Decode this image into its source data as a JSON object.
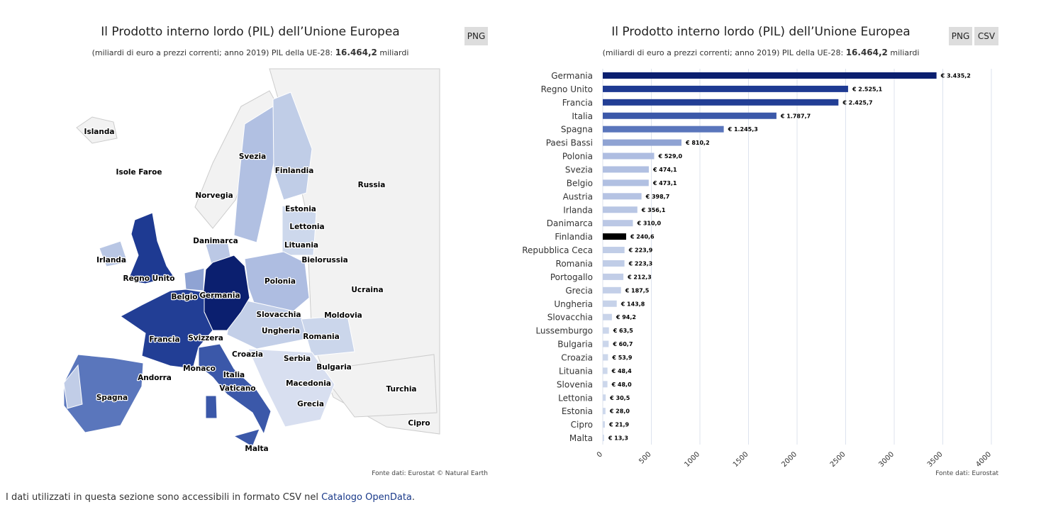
{
  "map": {
    "title": "Il Prodotto interno lordo (PIL) dell’Unione Europea",
    "subtitle": "(miliardi di euro a prezzi correnti; anno 2019) PIL della UE-28:",
    "subtitle_bold": "16.464,2",
    "subtitle_end": "miliardi",
    "button": "PNG",
    "source": "Fonte dati: Eurostat © Natural Earth",
    "labels": [
      "Islanda",
      "Isole Faroe",
      "Svezia",
      "Finlandia",
      "Russia",
      "Norvegia",
      "Estonia",
      "Lettonia",
      "Danimarca",
      "Lituania",
      "Irlanda",
      "Bielorussia",
      "Regno Unito",
      "Polonia",
      "Ucraina",
      "Belgio",
      "Germania",
      "Slovacchia",
      "Moldovia",
      "Ungheria",
      "Romania",
      "Svizzera",
      "Francia",
      "Croazia",
      "Serbia",
      "Bulgaria",
      "Monaco",
      "Italia",
      "Andorra",
      "Vaticano",
      "Macedonia",
      "Turchia",
      "Spagna",
      "Grecia",
      "Cipro",
      "Malta"
    ]
  },
  "chart_data": {
    "type": "barh",
    "title": "Il Prodotto interno lordo (PIL) dell’Unione Europea",
    "subtitle": "(miliardi di euro a prezzi correnti; anno 2019) PIL della UE-28:",
    "subtitle_bold": "16.464,2",
    "subtitle_end": "miliardi",
    "buttons": [
      "PNG",
      "CSV"
    ],
    "source": "Fonte dati: Eurostat",
    "categories": [
      "Germania",
      "Regno Unito",
      "Francia",
      "Italia",
      "Spagna",
      "Paesi Bassi",
      "Polonia",
      "Svezia",
      "Belgio",
      "Austria",
      "Irlanda",
      "Danimarca",
      "Finlandia",
      "Repubblica Ceca",
      "Romania",
      "Portogallo",
      "Grecia",
      "Ungheria",
      "Slovacchia",
      "Lussemburgo",
      "Bulgaria",
      "Croazia",
      "Lituania",
      "Slovenia",
      "Lettonia",
      "Estonia",
      "Cipro",
      "Malta"
    ],
    "values": [
      3435.2,
      2525.1,
      2425.7,
      1787.7,
      1245.3,
      810.2,
      529.0,
      474.1,
      473.1,
      398.7,
      356.1,
      310.0,
      240.6,
      223.9,
      223.3,
      212.3,
      187.5,
      143.8,
      94.2,
      63.5,
      60.7,
      53.9,
      48.4,
      48.0,
      30.5,
      28.0,
      21.9,
      13.3
    ],
    "value_labels": [
      "€ 3.435,2",
      "€ 2.525,1",
      "€ 2.425,7",
      "€ 1.787,7",
      "€ 1.245,3",
      "€ 810,2",
      "€ 529,0",
      "€ 474,1",
      "€ 473,1",
      "€ 398,7",
      "€ 356,1",
      "€ 310,0",
      "€ 240,6",
      "€ 223,9",
      "€ 223,3",
      "€ 212,3",
      "€ 187,5",
      "€ 143,8",
      "€ 94,2",
      "€ 63,5",
      "€ 60,7",
      "€ 53,9",
      "€ 48,4",
      "€ 48,0",
      "€ 30,5",
      "€ 28,0",
      "€ 21,9",
      "€ 13,3"
    ],
    "colors": [
      "#0b1f6f",
      "#1e3a92",
      "#223e95",
      "#3b58a9",
      "#5a76bc",
      "#8fa3d3",
      "#aebde1",
      "#b1c0e2",
      "#b1c0e2",
      "#b5c3e3",
      "#b8c6e4",
      "#bbc8e5",
      "#bfccе7",
      "#c0cde7",
      "#c0cde7",
      "#c1cde7",
      "#c3cfe8",
      "#c6d2e9",
      "#c9d4ea",
      "#cbd6eb",
      "#cbd6eb",
      "#ccd7eb",
      "#ccd7eb",
      "#ccd7eb",
      "#cdd8ec",
      "#cdd8ec",
      "#ced9ec",
      "#ced9ec"
    ],
    "xlim": [
      0,
      4000
    ],
    "xticks": [
      0,
      500,
      1000,
      1500,
      2000,
      2500,
      3000,
      3500,
      4000
    ],
    "grid": true
  },
  "footer": {
    "text": "I dati utilizzati in questa sezione sono accessibili in formato CSV nel",
    "link": "Catalogo OpenData",
    "end": "."
  }
}
